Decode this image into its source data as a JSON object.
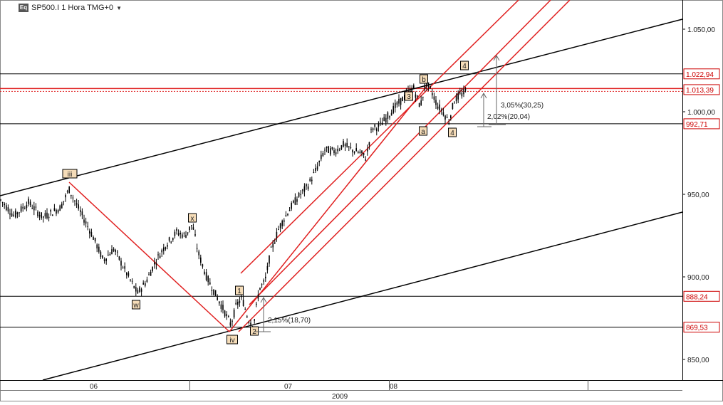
{
  "header": {
    "logo": "Eq",
    "title": "SP500.I 1 Hora TMG+0",
    "dropdown_icon": "triangle-down-icon"
  },
  "chart_data": {
    "type": "candlestick",
    "symbol": "SP500.I",
    "timeframe": "1 Hora",
    "timezone": "TMG+0",
    "year_label": "2009",
    "y_axis": {
      "range": [
        835,
        1068
      ],
      "ticks": [
        {
          "value": 850,
          "label": "850,00"
        },
        {
          "value": 900,
          "label": "900,00"
        },
        {
          "value": 950,
          "label": "950,00"
        },
        {
          "value": 1000,
          "label": "1.000,00"
        },
        {
          "value": 1050,
          "label": "1.050,00"
        }
      ]
    },
    "x_axis": {
      "months": [
        {
          "label": "06"
        },
        {
          "label": "07"
        },
        {
          "label": "08"
        }
      ]
    },
    "price_levels": [
      {
        "value": 1022.94,
        "label": "1.022,94"
      },
      {
        "value": 1013.39,
        "label": "1.013,39"
      },
      {
        "value": 992.71,
        "label": "992,71"
      },
      {
        "value": 888.24,
        "label": "888,24"
      },
      {
        "value": 869.53,
        "label": "869,53"
      }
    ],
    "wave_labels": [
      "iii",
      "w",
      "x",
      "iv",
      "1",
      "2",
      "3",
      "a",
      "b",
      "4",
      "4"
    ],
    "measurements": [
      {
        "label": "2,15%(18,70)"
      },
      {
        "label": "3,05%(30,25)"
      },
      {
        "label": "2,02%(20,04)"
      }
    ],
    "price_path": [
      [
        0,
        947
      ],
      [
        20,
        937
      ],
      [
        40,
        945
      ],
      [
        60,
        936
      ],
      [
        85,
        942
      ],
      [
        97,
        953
      ],
      [
        112,
        940
      ],
      [
        130,
        925
      ],
      [
        145,
        910
      ],
      [
        160,
        917
      ],
      [
        178,
        902
      ],
      [
        193,
        890
      ],
      [
        205,
        897
      ],
      [
        218,
        909
      ],
      [
        232,
        919
      ],
      [
        248,
        927
      ],
      [
        260,
        925
      ],
      [
        270,
        932
      ],
      [
        278,
        915
      ],
      [
        290,
        900
      ],
      [
        302,
        890
      ],
      [
        314,
        880
      ],
      [
        324,
        871
      ],
      [
        332,
        883
      ],
      [
        340,
        887
      ],
      [
        348,
        875
      ],
      [
        356,
        871
      ],
      [
        364,
        893
      ],
      [
        372,
        897
      ],
      [
        380,
        915
      ],
      [
        392,
        930
      ],
      [
        405,
        940
      ],
      [
        418,
        948
      ],
      [
        432,
        955
      ],
      [
        444,
        965
      ],
      [
        456,
        977
      ],
      [
        470,
        976
      ],
      [
        482,
        980
      ],
      [
        494,
        977
      ],
      [
        506,
        975
      ],
      [
        514,
        972
      ],
      [
        522,
        990
      ],
      [
        532,
        991
      ],
      [
        542,
        996
      ],
      [
        555,
        1003
      ],
      [
        568,
        1009
      ],
      [
        580,
        1015
      ],
      [
        590,
        1003
      ],
      [
        598,
        1018
      ],
      [
        606,
        1012
      ],
      [
        614,
        1004
      ],
      [
        622,
        1000
      ],
      [
        630,
        994
      ],
      [
        638,
        1007
      ],
      [
        646,
        1010
      ],
      [
        656,
        1013
      ]
    ],
    "colors": {
      "candles": "#000000",
      "channel": "#e02020",
      "trendlines": "#000000",
      "level_labels": "#cc0000"
    }
  }
}
